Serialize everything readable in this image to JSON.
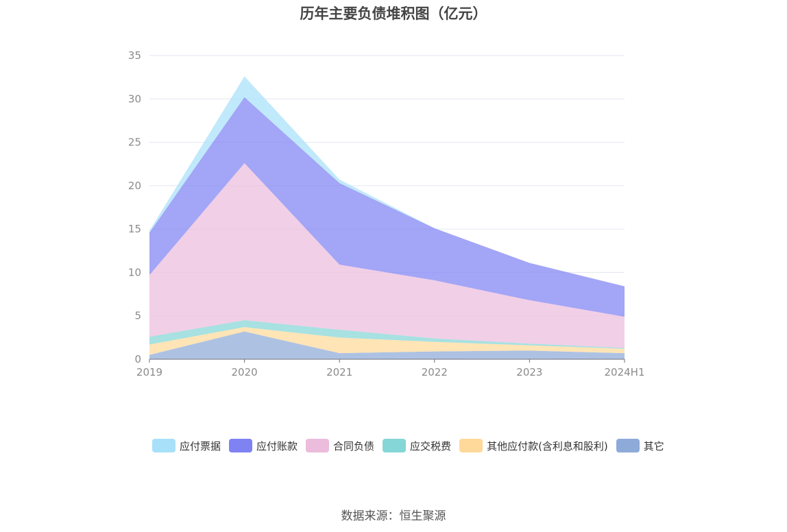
{
  "title": "历年主要负债堆积图（亿元）",
  "source": "数据来源：恒生聚源",
  "chart_data": {
    "type": "area",
    "stacked": true,
    "title": "历年主要负债堆积图（亿元）",
    "categories": [
      "2019",
      "2020",
      "2021",
      "2022",
      "2023",
      "2024H1"
    ],
    "ylim": [
      0,
      35
    ],
    "yticks": [
      0,
      5,
      10,
      15,
      20,
      25,
      30,
      35
    ],
    "grid": true,
    "legend_position": "bottom",
    "series": [
      {
        "name": "其它",
        "color": "#8eaad8",
        "values": [
          0.5,
          3.2,
          0.7,
          0.9,
          1.0,
          0.7
        ]
      },
      {
        "name": "其他应付款(含利息和股利)",
        "color": "#ffd99a",
        "values": [
          1.2,
          0.5,
          1.8,
          1.1,
          0.6,
          0.5
        ]
      },
      {
        "name": "应交税费",
        "color": "#85d6d6",
        "values": [
          0.9,
          0.8,
          0.9,
          0.4,
          0.2,
          0.1
        ]
      },
      {
        "name": "合同负债",
        "color": "#ebbcdc",
        "values": [
          7.1,
          18.1,
          7.5,
          6.7,
          5.0,
          3.6
        ]
      },
      {
        "name": "应付账款",
        "color": "#7f82f3",
        "values": [
          4.9,
          7.6,
          9.4,
          6.0,
          4.3,
          3.5
        ]
      },
      {
        "name": "应付票据",
        "color": "#a8e0f9",
        "values": [
          0.2,
          2.4,
          0.4,
          0.0,
          0.0,
          0.0
        ]
      }
    ],
    "legend_order": [
      "应付票据",
      "应付账款",
      "合同负债",
      "应交税费",
      "其他应付款(含利息和股利)",
      "其它"
    ]
  }
}
